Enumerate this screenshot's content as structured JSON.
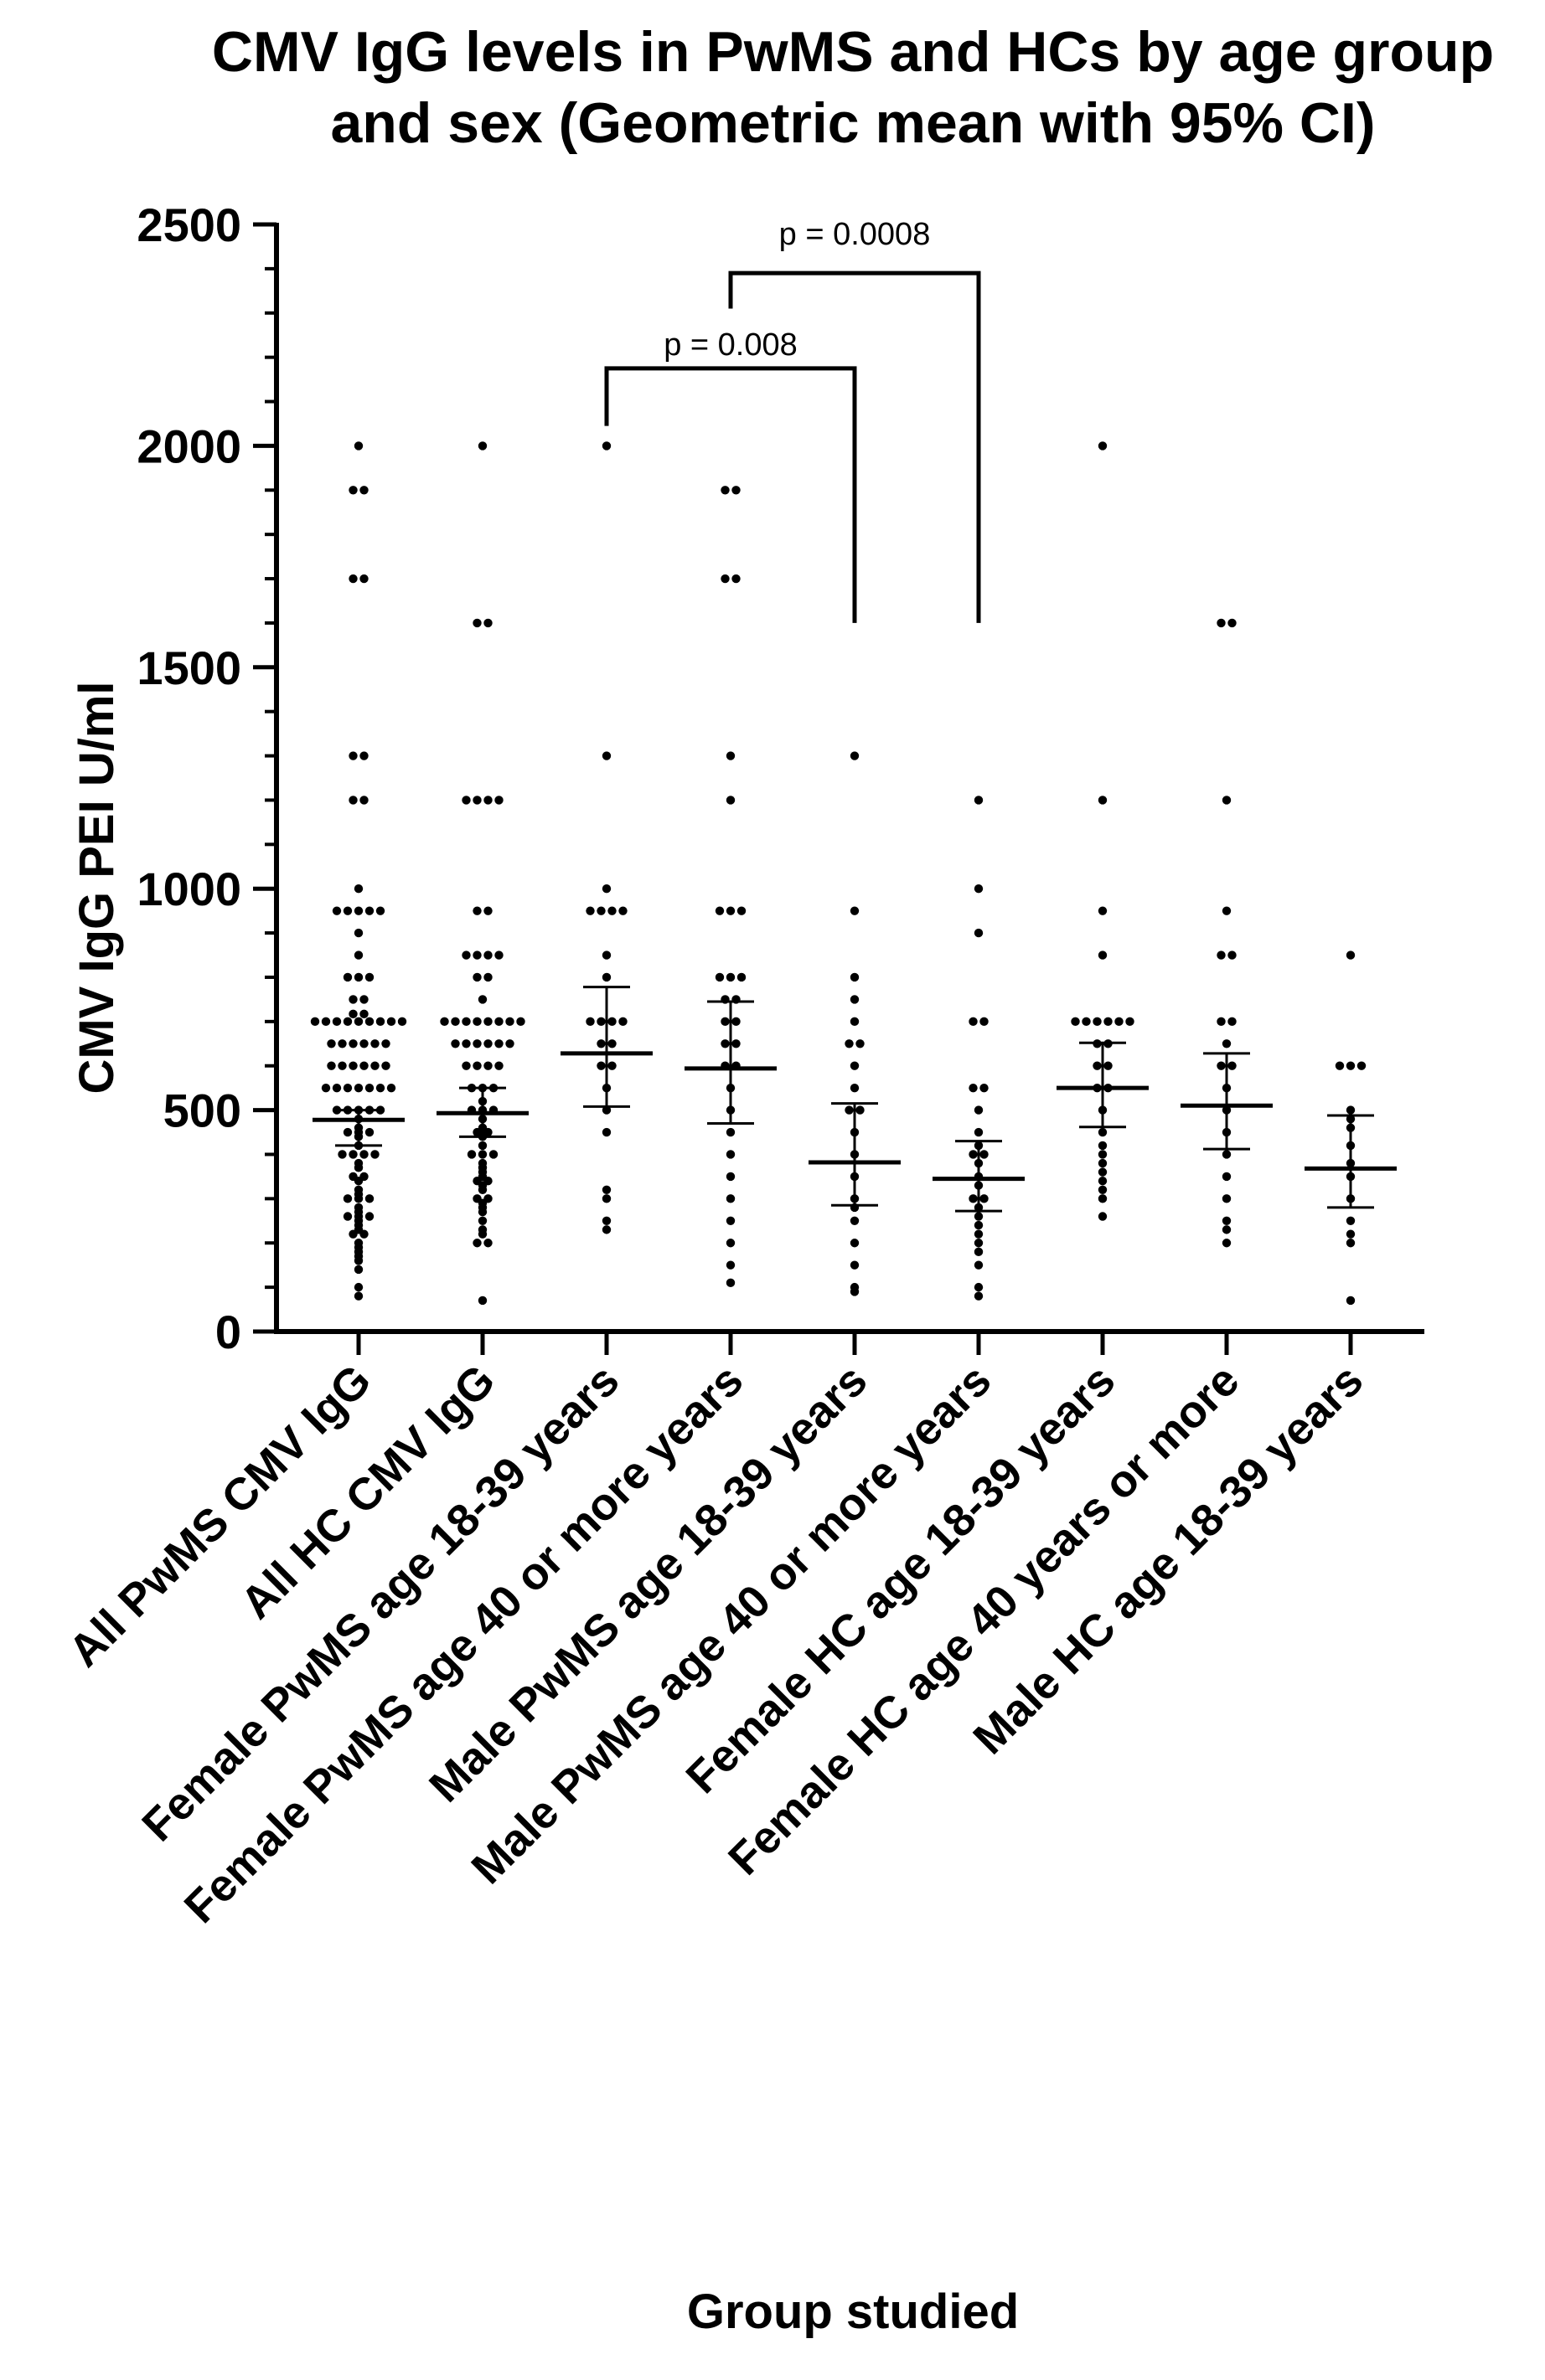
{
  "chart_data": {
    "type": "scatter",
    "subtype": "dot-plot with geometric mean and 95% CI",
    "title_lines": [
      "CMV IgG levels in PwMS and HCs by age group",
      "and sex (Geometric mean with 95% CI)"
    ],
    "xlabel": "Group studied",
    "ylabel": "CMV IgG PEI U/ml",
    "ylim": [
      0,
      2500
    ],
    "yticks": [
      "0",
      "500",
      "1000",
      "1500",
      "2000",
      "2500"
    ],
    "categories": [
      "All PwMS CMV IgG",
      "All HC CMV IgG",
      "Female PwMS age 18-39 years",
      "Female PwMS age 40 or more years",
      "Male PwMS age 18-39 years",
      "Male PwMS age 40 or more years",
      "Female HC age 18-39 years",
      "Female HC age 40 years or more",
      "Male HC age 18-39 years"
    ],
    "summary": [
      {
        "gmean": 478,
        "ci_low": 420,
        "ci_high": 500
      },
      {
        "gmean": 493,
        "ci_low": 440,
        "ci_high": 550
      },
      {
        "gmean": 628,
        "ci_low": 508,
        "ci_high": 778
      },
      {
        "gmean": 594,
        "ci_low": 470,
        "ci_high": 745
      },
      {
        "gmean": 382,
        "ci_low": 285,
        "ci_high": 515
      },
      {
        "gmean": 345,
        "ci_low": 272,
        "ci_high": 430
      },
      {
        "gmean": 550,
        "ci_low": 462,
        "ci_high": 652
      },
      {
        "gmean": 510,
        "ci_low": 412,
        "ci_high": 628
      },
      {
        "gmean": 368,
        "ci_low": 280,
        "ci_high": 488
      }
    ],
    "points": [
      [
        2000,
        1900,
        1900,
        1700,
        1700,
        1300,
        1300,
        1200,
        1200,
        1000,
        950,
        950,
        950,
        950,
        950,
        900,
        850,
        800,
        800,
        800,
        750,
        750,
        700,
        700,
        700,
        700,
        700,
        700,
        700,
        700,
        700,
        700,
        700,
        650,
        650,
        650,
        650,
        650,
        650,
        600,
        600,
        600,
        600,
        600,
        600,
        550,
        550,
        550,
        550,
        550,
        550,
        550,
        500,
        500,
        500,
        500,
        500,
        480,
        460,
        450,
        450,
        450,
        440,
        420,
        400,
        400,
        400,
        400,
        380,
        370,
        350,
        350,
        340,
        320,
        310,
        300,
        300,
        300,
        280,
        270,
        260,
        260,
        260,
        250,
        240,
        230,
        220,
        220,
        200,
        190,
        180,
        170,
        160,
        140,
        100,
        80
      ],
      [
        2000,
        1600,
        1600,
        1200,
        1200,
        1200,
        1200,
        950,
        950,
        850,
        850,
        850,
        850,
        800,
        800,
        750,
        700,
        700,
        700,
        700,
        700,
        700,
        700,
        700,
        650,
        650,
        650,
        650,
        650,
        650,
        600,
        600,
        600,
        600,
        550,
        550,
        550,
        520,
        500,
        500,
        500,
        480,
        460,
        450,
        450,
        440,
        420,
        400,
        400,
        400,
        380,
        370,
        360,
        350,
        340,
        340,
        330,
        320,
        300,
        300,
        290,
        280,
        270,
        250,
        230,
        220,
        200,
        200,
        70
      ],
      [
        2000,
        1300,
        1000,
        950,
        950,
        950,
        950,
        850,
        800,
        700,
        700,
        700,
        700,
        650,
        650,
        600,
        600,
        550,
        500,
        450,
        320,
        300,
        250,
        230
      ],
      [
        1900,
        1900,
        1700,
        1700,
        1300,
        1200,
        950,
        950,
        950,
        800,
        800,
        800,
        750,
        750,
        700,
        700,
        650,
        650,
        600,
        600,
        550,
        500,
        450,
        400,
        350,
        300,
        250,
        200,
        150,
        110
      ],
      [
        1300,
        950,
        800,
        750,
        700,
        650,
        650,
        600,
        550,
        500,
        500,
        450,
        400,
        350,
        300,
        280,
        250,
        200,
        150,
        100,
        90
      ],
      [
        1200,
        1000,
        900,
        700,
        700,
        550,
        550,
        500,
        450,
        420,
        400,
        400,
        380,
        350,
        330,
        300,
        300,
        280,
        260,
        240,
        220,
        200,
        180,
        150,
        100,
        80
      ],
      [
        2000,
        1200,
        950,
        850,
        700,
        700,
        700,
        700,
        700,
        700,
        650,
        650,
        600,
        600,
        550,
        550,
        500,
        450,
        420,
        400,
        380,
        360,
        340,
        320,
        300,
        260
      ],
      [
        1600,
        1600,
        1200,
        950,
        850,
        850,
        700,
        700,
        650,
        600,
        600,
        550,
        500,
        450,
        400,
        350,
        300,
        250,
        230,
        200
      ],
      [
        850,
        600,
        600,
        600,
        500,
        480,
        460,
        420,
        380,
        350,
        300,
        250,
        220,
        200,
        70
      ]
    ],
    "annotations": [
      {
        "text": "p = 0.008",
        "from_category": 2,
        "to_category": 4
      },
      {
        "text": "p = 0.0008",
        "from_category": 3,
        "to_category": 5
      }
    ]
  }
}
